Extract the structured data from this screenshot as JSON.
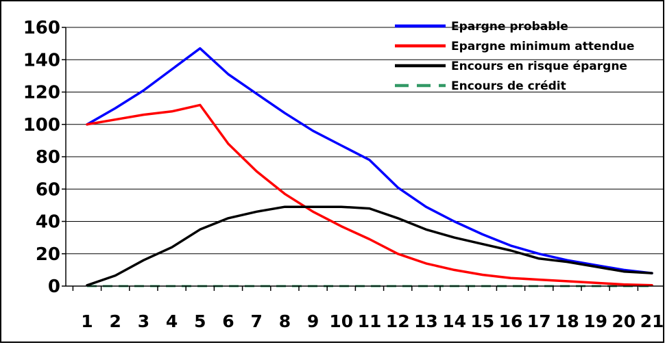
{
  "chart_data": {
    "type": "line",
    "x": [
      1,
      2,
      3,
      4,
      5,
      6,
      7,
      8,
      9,
      10,
      11,
      12,
      13,
      14,
      15,
      16,
      17,
      18,
      19,
      20,
      21
    ],
    "x_tick_labels": [
      "1",
      "2",
      "3",
      "4",
      "5",
      "6",
      "7",
      "8",
      "9",
      "10",
      "11",
      "12",
      "13",
      "14",
      "15",
      "16",
      "17",
      "18",
      "19",
      "20",
      "21"
    ],
    "y_tick_labels": [
      "0",
      "20",
      "40",
      "60",
      "80",
      "100",
      "120",
      "140",
      "160"
    ],
    "ylim": [
      0,
      160
    ],
    "grid": "horizontal",
    "legend_position": "top-right",
    "series": [
      {
        "name": "Epargne probable",
        "color": "#0000ff",
        "style": "solid",
        "values": [
          100,
          110,
          121,
          134,
          147,
          131,
          119,
          107,
          96,
          87,
          78,
          61,
          49,
          40,
          32,
          25,
          20,
          16,
          13,
          10,
          8
        ]
      },
      {
        "name": "Epargne minimum attendue",
        "color": "#ff0000",
        "style": "solid",
        "values": [
          100,
          103,
          106,
          108,
          112,
          88,
          71,
          57,
          46,
          37,
          29,
          20,
          14,
          10,
          7,
          5,
          4,
          3,
          2,
          1,
          0.5
        ]
      },
      {
        "name": "Encours en risque épargne",
        "color": "#000000",
        "style": "solid",
        "values": [
          0.5,
          6.5,
          16,
          24,
          35,
          42,
          46,
          49,
          49,
          49,
          48,
          42,
          35,
          30,
          26,
          22,
          17,
          15,
          12,
          9,
          8
        ]
      },
      {
        "name": "Encours de crédit",
        "color": "#339966",
        "style": "dashed",
        "values": [
          0,
          0,
          0,
          0,
          0,
          0,
          0,
          0,
          0,
          0,
          0,
          0,
          0,
          0,
          0,
          0,
          0,
          0,
          0,
          0,
          0
        ]
      }
    ]
  }
}
